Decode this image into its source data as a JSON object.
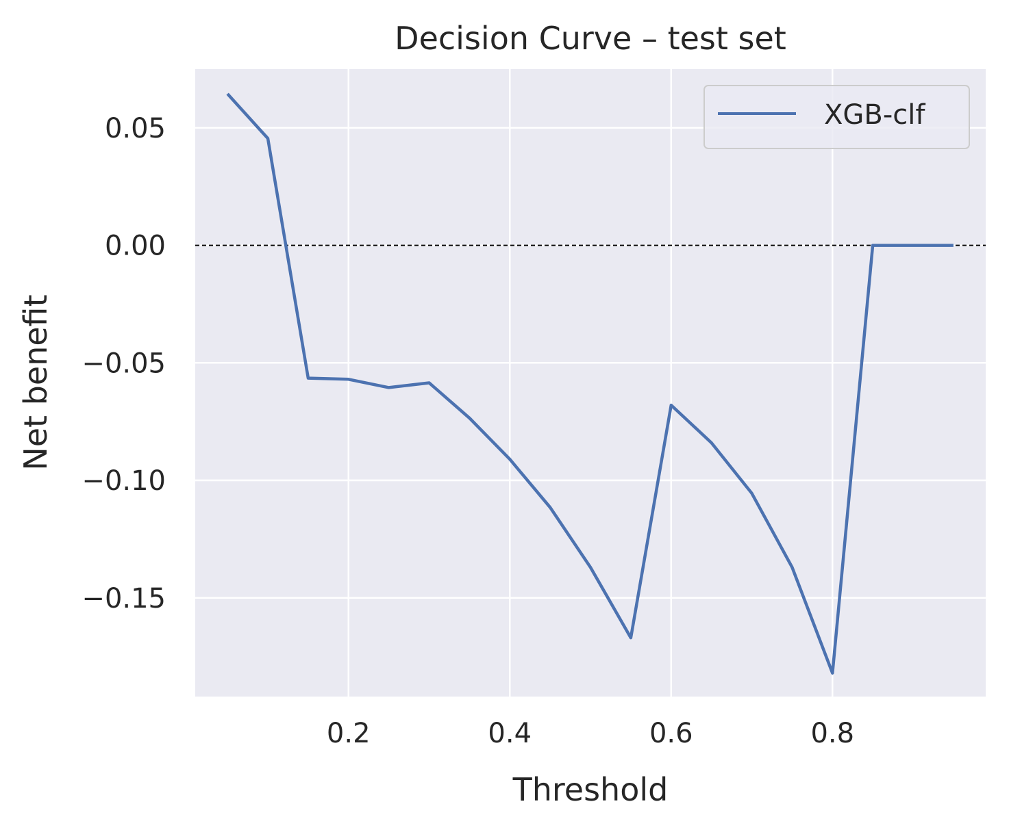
{
  "chart_data": {
    "type": "line",
    "title": "Decision Curve – test set",
    "xlabel": "Threshold",
    "ylabel": "Net benefit",
    "xlim": [
      0.01,
      0.99
    ],
    "ylim": [
      -0.192,
      0.075
    ],
    "xticks": [
      0.2,
      0.4,
      0.6,
      0.8
    ],
    "xtick_labels": [
      "0.2",
      "0.4",
      "0.6",
      "0.8"
    ],
    "yticks": [
      0.05,
      0.0,
      -0.05,
      -0.1,
      -0.15
    ],
    "ytick_labels": [
      "0.05",
      "0.00",
      "−0.05",
      "−0.10",
      "−0.15"
    ],
    "grid": true,
    "legend_position": "upper-right",
    "series": [
      {
        "name": "XGB-clf",
        "color": "#4c72b0",
        "x": [
          0.05,
          0.1,
          0.15,
          0.2,
          0.25,
          0.3,
          0.35,
          0.4,
          0.45,
          0.5,
          0.55,
          0.6,
          0.65,
          0.7,
          0.75,
          0.8,
          0.85,
          0.9,
          0.95
        ],
        "y": [
          0.0645,
          0.0455,
          -0.0565,
          -0.057,
          -0.0605,
          -0.0585,
          -0.0735,
          -0.091,
          -0.1115,
          -0.137,
          -0.167,
          -0.068,
          -0.084,
          -0.1055,
          -0.137,
          -0.182,
          0.0,
          0.0,
          0.0
        ]
      }
    ],
    "reference_line": {
      "y": 0.0,
      "style": "dashed",
      "color": "#000000"
    },
    "colors": {
      "plot_background": "#eaeaf2",
      "grid": "#ffffff",
      "text": "#262626"
    }
  }
}
